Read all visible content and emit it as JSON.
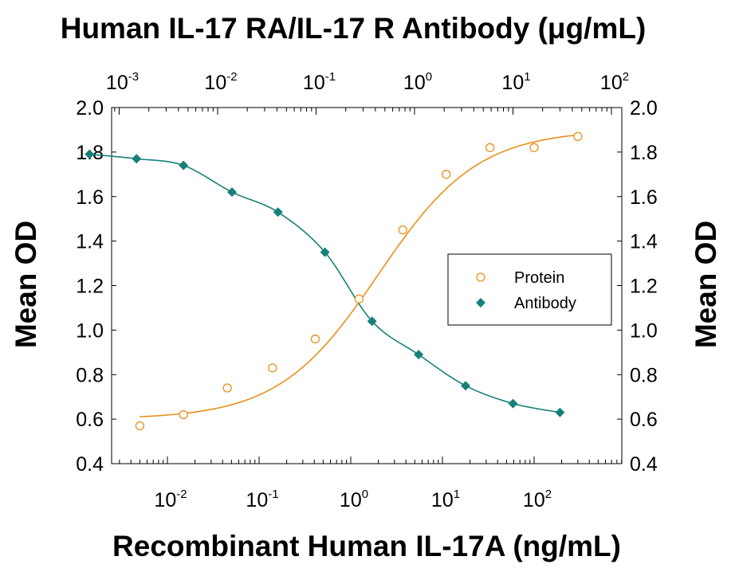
{
  "chart_data": {
    "type": "scatter",
    "title": "Human IL-17 RA/IL-17 R Antibody (μg/mL)",
    "xlabel": "Recombinant Human IL-17A (ng/mL)",
    "ylabel_left": "Mean OD",
    "ylabel_right": "Mean OD",
    "x_scale": "log",
    "x_ticks": [
      {
        "base": "10",
        "exp": "-2",
        "value": 0.01
      },
      {
        "base": "10",
        "exp": "-1",
        "value": 0.1
      },
      {
        "base": "10",
        "exp": "0",
        "value": 1
      },
      {
        "base": "10",
        "exp": "1",
        "value": 10
      },
      {
        "base": "10",
        "exp": "2",
        "value": 100
      }
    ],
    "top_x_scale": "log",
    "top_x_ticks": [
      {
        "base": "10",
        "exp": "-3",
        "value": 0.001
      },
      {
        "base": "10",
        "exp": "-2",
        "value": 0.01
      },
      {
        "base": "10",
        "exp": "-1",
        "value": 0.1
      },
      {
        "base": "10",
        "exp": "0",
        "value": 1
      },
      {
        "base": "10",
        "exp": "1",
        "value": 10
      },
      {
        "base": "10",
        "exp": "2",
        "value": 100
      }
    ],
    "ylim": [
      0.4,
      2.0
    ],
    "y_ticks": [
      "0.4",
      "0.6",
      "0.8",
      "1.0",
      "1.2",
      "1.4",
      "1.6",
      "1.8",
      "2.0"
    ],
    "legend_position": "center-right",
    "series": [
      {
        "name": "Protein",
        "marker": "open-circle",
        "color": "#E8901A",
        "axis": "bottom",
        "x": [
          0.005,
          0.015,
          0.045,
          0.14,
          0.41,
          1.23,
          3.7,
          11,
          33,
          100,
          300
        ],
        "y": [
          0.57,
          0.62,
          0.74,
          0.83,
          0.96,
          1.14,
          1.45,
          1.7,
          1.82,
          1.82,
          1.87
        ],
        "fit": {
          "bottom": 0.6,
          "top": 1.9,
          "ec50": 2.0,
          "hill": 0.8
        }
      },
      {
        "name": "Antibody",
        "marker": "filled-diamond",
        "color": "#17807A",
        "axis": "top",
        "x": [
          0.0005,
          0.0015,
          0.0045,
          0.014,
          0.041,
          0.123,
          0.37,
          1.1,
          3.3,
          10,
          30
        ],
        "y": [
          1.79,
          1.77,
          1.74,
          1.62,
          1.53,
          1.35,
          1.04,
          0.89,
          0.75,
          0.67,
          0.63
        ]
      }
    ]
  }
}
